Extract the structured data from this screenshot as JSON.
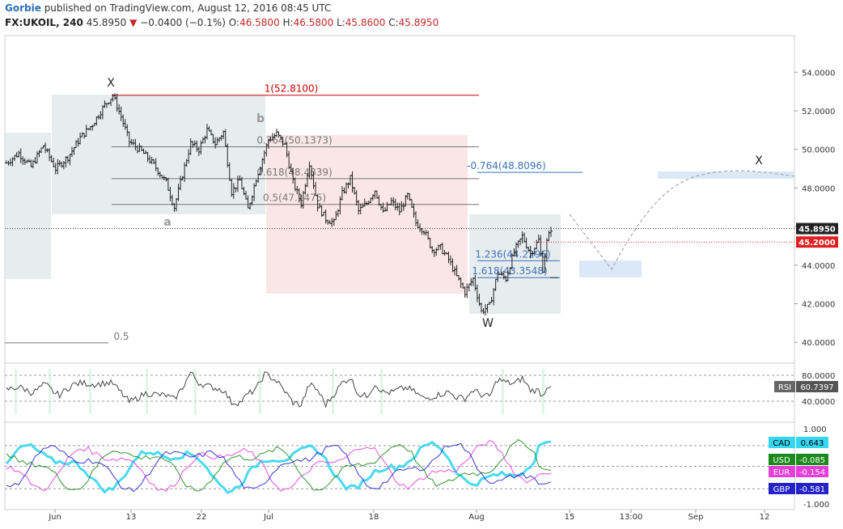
{
  "header": {
    "author": "Gorbie",
    "published": "published on TradingView.com, August 12, 2016 08:45 UTC",
    "symbol": "FX:UKOIL, 240",
    "last": "45.8950",
    "change": "−0.0400 (−0.1%)",
    "o_label": "O:",
    "o": "46.5800",
    "h_label": "H:",
    "h": "46.5800",
    "l_label": "L:",
    "l": "45.8600",
    "c_label": "C:",
    "c": "45.8950"
  },
  "colors": {
    "fib_red": "#cc0000",
    "fib_gray": "#777777",
    "fib_blue": "#3b73b9",
    "zone_gray": "#dfe6ea",
    "zone_pink": "#f8dedd",
    "zone_blue": "#cfe0f5",
    "cad": "#35d6f0",
    "usd": "#1b8a1b",
    "eur": "#e43fd8",
    "gbp": "#2222c8"
  },
  "chart_data": [
    {
      "type": "ohlc",
      "symbol": "FX:UKOIL",
      "interval": "240",
      "x_tick_labels": [
        "Jun",
        "13",
        "22",
        "Jul",
        "18",
        "Aug",
        "15",
        "13:00",
        "Sep",
        "12"
      ],
      "y_tick_labels": [
        "54.0000",
        "52.0000",
        "50.0000",
        "48.0000",
        "46.0000",
        "44.0000",
        "42.0000",
        "40.0000"
      ],
      "ylim": [
        39.0,
        55.5
      ],
      "price_path": [
        {
          "t": 0,
          "p": 49.3
        },
        {
          "t": 3,
          "p": 49.8
        },
        {
          "t": 6,
          "p": 49.1
        },
        {
          "t": 9,
          "p": 50.2
        },
        {
          "t": 12,
          "p": 49.0
        },
        {
          "t": 15,
          "p": 49.6
        },
        {
          "t": 18,
          "p": 50.6
        },
        {
          "t": 21,
          "p": 51.3
        },
        {
          "t": 24,
          "p": 52.3
        },
        {
          "t": 26,
          "p": 52.8
        },
        {
          "t": 28,
          "p": 51.7
        },
        {
          "t": 30,
          "p": 50.4
        },
        {
          "t": 33,
          "p": 49.9
        },
        {
          "t": 36,
          "p": 49.2
        },
        {
          "t": 39,
          "p": 48.3
        },
        {
          "t": 41,
          "p": 47.0
        },
        {
          "t": 43,
          "p": 48.7
        },
        {
          "t": 45,
          "p": 50.3
        },
        {
          "t": 47,
          "p": 50.0
        },
        {
          "t": 49,
          "p": 51.0
        },
        {
          "t": 51,
          "p": 50.3
        },
        {
          "t": 53,
          "p": 50.9
        },
        {
          "t": 55,
          "p": 47.8
        },
        {
          "t": 57,
          "p": 48.4
        },
        {
          "t": 59,
          "p": 46.9
        },
        {
          "t": 61,
          "p": 48.5
        },
        {
          "t": 64,
          "p": 50.5
        },
        {
          "t": 66,
          "p": 50.8
        },
        {
          "t": 68,
          "p": 50.2
        },
        {
          "t": 70,
          "p": 48.3
        },
        {
          "t": 72,
          "p": 47.2
        },
        {
          "t": 74,
          "p": 49.3
        },
        {
          "t": 76,
          "p": 47.1
        },
        {
          "t": 78,
          "p": 46.4
        },
        {
          "t": 80,
          "p": 46.2
        },
        {
          "t": 82,
          "p": 47.7
        },
        {
          "t": 84,
          "p": 48.5
        },
        {
          "t": 86,
          "p": 46.8
        },
        {
          "t": 88,
          "p": 47.2
        },
        {
          "t": 90,
          "p": 47.9
        },
        {
          "t": 92,
          "p": 46.7
        },
        {
          "t": 94,
          "p": 47.3
        },
        {
          "t": 96,
          "p": 46.8
        },
        {
          "t": 98,
          "p": 47.6
        },
        {
          "t": 100,
          "p": 46.2
        },
        {
          "t": 102,
          "p": 45.8
        },
        {
          "t": 104,
          "p": 44.8
        },
        {
          "t": 106,
          "p": 44.9
        },
        {
          "t": 108,
          "p": 44.3
        },
        {
          "t": 110,
          "p": 43.4
        },
        {
          "t": 112,
          "p": 42.6
        },
        {
          "t": 114,
          "p": 43.3
        },
        {
          "t": 116,
          "p": 41.6
        },
        {
          "t": 118,
          "p": 41.9
        },
        {
          "t": 120,
          "p": 43.6
        },
        {
          "t": 122,
          "p": 43.3
        },
        {
          "t": 124,
          "p": 44.7
        },
        {
          "t": 126,
          "p": 45.5
        },
        {
          "t": 128,
          "p": 44.6
        },
        {
          "t": 130,
          "p": 45.3
        },
        {
          "t": 131,
          "p": 43.8
        },
        {
          "t": 132,
          "p": 45.2
        },
        {
          "t": 133,
          "p": 45.9
        }
      ],
      "last_price": 45.895,
      "level_marker": 45.2,
      "fib_levels": [
        {
          "label": "1(52.8100)",
          "value": 52.81
        },
        {
          "label": "0.764(50.1373)",
          "value": 50.1373
        },
        {
          "label": "0.618(48.4839)",
          "value": 48.4839
        },
        {
          "label": "0.5(47.1475)",
          "value": 47.1475
        },
        {
          "label": "0.5",
          "value": 39.97
        },
        {
          "label": "-0.764(48.8096)",
          "value": 48.8096
        },
        {
          "label": "1.236(44.2296)",
          "value": 44.2296
        },
        {
          "label": "1.618(43.3548)",
          "value": 43.3548
        }
      ],
      "wave_labels": [
        "X",
        "b",
        "a",
        "W",
        "X"
      ],
      "price_badges": [
        {
          "label": "45.8950",
          "color": "#222222"
        },
        {
          "label": "45.2000",
          "color": "#e02020"
        }
      ]
    },
    {
      "type": "line",
      "name": "RSI",
      "y_tick_labels": [
        "80.0000",
        "40.0000"
      ],
      "ylim": [
        20,
        90
      ],
      "reference_lines": [
        80,
        40
      ],
      "last_value": "60.7397",
      "label": "RSI"
    },
    {
      "type": "line",
      "y_tick_labels": [
        "1.000",
        "-1.000"
      ],
      "ylim": [
        -1.0,
        1.0
      ],
      "series": [
        {
          "name": "CAD",
          "last_value": "0.643"
        },
        {
          "name": "USD",
          "last_value": "-0.085"
        },
        {
          "name": "EUR",
          "last_value": "-0.154"
        },
        {
          "name": "GBP",
          "last_value": "-0.581"
        }
      ]
    }
  ]
}
